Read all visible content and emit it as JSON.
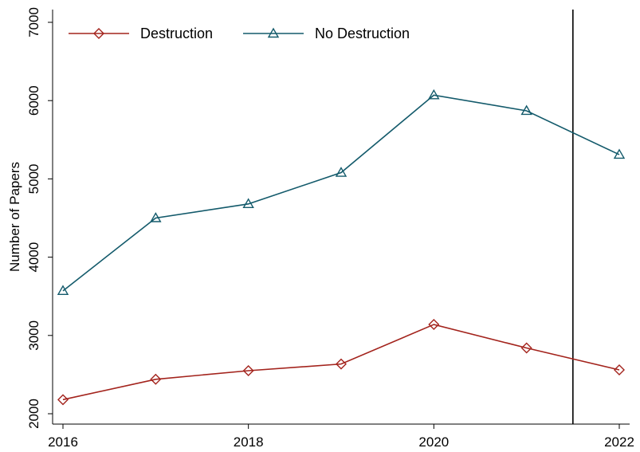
{
  "chart_data": {
    "type": "line",
    "title": "",
    "xlabel": "",
    "ylabel": "Number of Papers",
    "x": [
      2016,
      2017,
      2018,
      2019,
      2020,
      2021,
      2022
    ],
    "xlim": [
      2016,
      2022
    ],
    "ylim": [
      2000,
      7000
    ],
    "x_ticks": [
      2016,
      2018,
      2020,
      2022
    ],
    "y_ticks": [
      2000,
      3000,
      4000,
      5000,
      6000,
      7000
    ],
    "grid": false,
    "legend_position": "top-left",
    "vertical_reference_line_x": 2021.5,
    "series": [
      {
        "name": "Destruction",
        "color": "#a3231c",
        "marker": "diamond",
        "values": [
          2180,
          2440,
          2550,
          2635,
          3140,
          2840,
          2560
        ]
      },
      {
        "name": "No Destruction",
        "color": "#135a6b",
        "marker": "triangle",
        "values": [
          3570,
          4500,
          4680,
          5080,
          6070,
          5870,
          5310
        ]
      }
    ]
  }
}
